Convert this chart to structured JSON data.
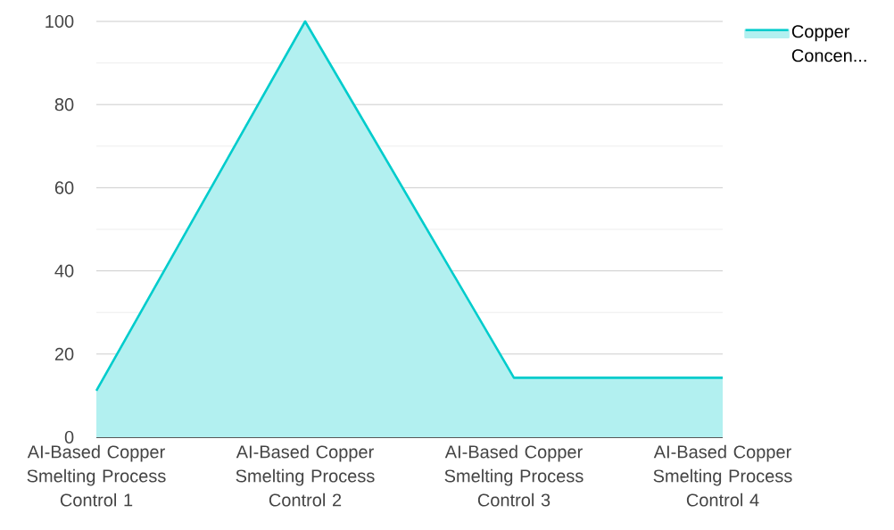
{
  "chart_data": {
    "type": "area",
    "categories": [
      "AI-Based Copper Smelting Process Control 1",
      "AI-Based Copper Smelting Process Control 2",
      "AI-Based Copper Smelting Process Control 3",
      "AI-Based Copper Smelting Process Control 4"
    ],
    "series": [
      {
        "name": "Copper Concen...",
        "color": "#00cccc",
        "values": [
          11.2,
          100,
          14.3,
          14.3
        ]
      }
    ],
    "ylim": [
      0,
      100
    ],
    "yticks": [
      0,
      {
        "value": 10,
        "label": null
      },
      20,
      {
        "value": 30,
        "label": null
      },
      40,
      {
        "value": 50,
        "label": null
      },
      60,
      {
        "value": 70,
        "label": null
      },
      80,
      {
        "value": 90,
        "label": null
      },
      100
    ],
    "grid": "y",
    "legend": "top right"
  }
}
